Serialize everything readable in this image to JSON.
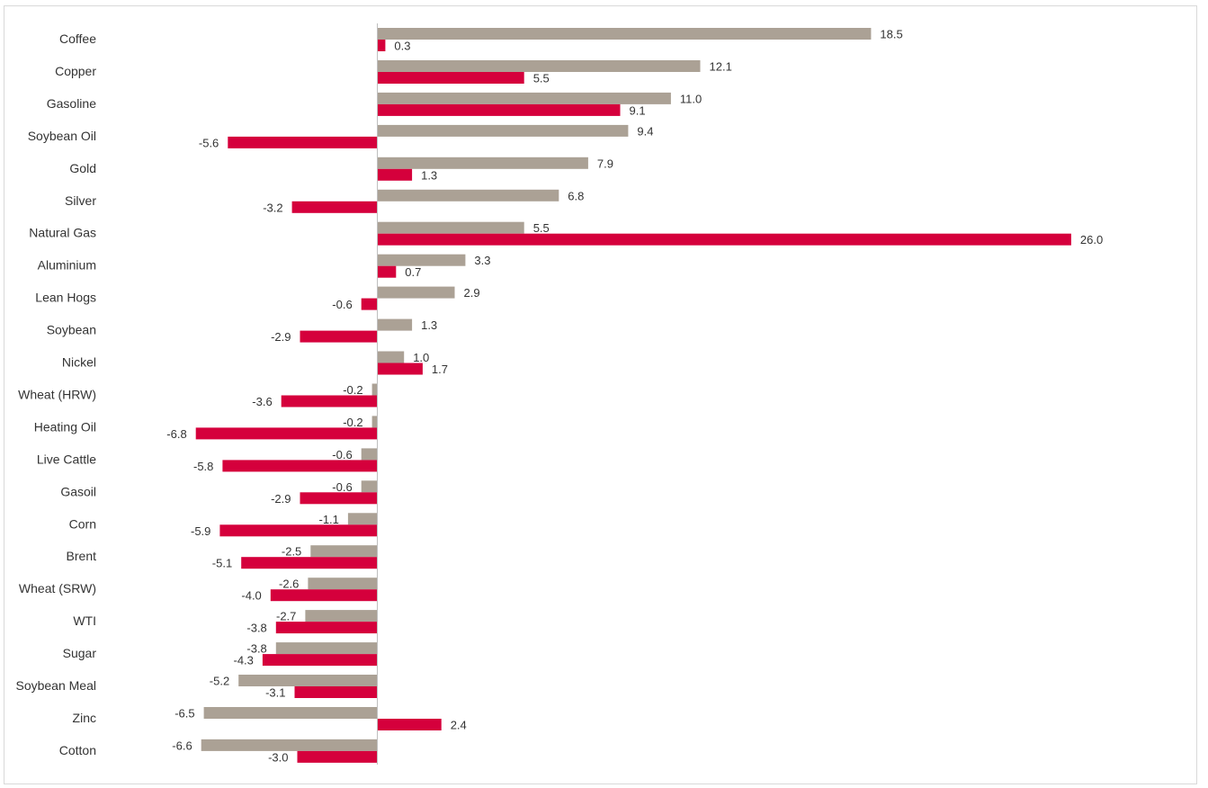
{
  "chart_data": {
    "type": "bar",
    "orientation": "horizontal",
    "title": "",
    "xlabel": "",
    "ylabel": "",
    "grid": false,
    "legend": "none",
    "categories": [
      "Coffee",
      "Copper",
      "Gasoline",
      "Soybean Oil",
      "Gold",
      "Silver",
      "Natural Gas",
      "Aluminium",
      "Lean Hogs",
      "Soybean",
      "Nickel",
      "Wheat (HRW)",
      "Heating Oil",
      "Live Cattle",
      "Gasoil",
      "Corn",
      "Brent",
      "Wheat (SRW)",
      "WTI",
      "Sugar",
      "Soybean Meal",
      "Zinc",
      "Cotton"
    ],
    "series": [
      {
        "color": "#aba195",
        "values": [
          18.5,
          12.1,
          11.0,
          9.4,
          7.9,
          6.8,
          5.5,
          3.3,
          2.9,
          1.3,
          1.0,
          -0.2,
          -0.2,
          -0.6,
          -0.6,
          -1.1,
          -2.5,
          -2.6,
          -2.7,
          -3.8,
          -5.2,
          -6.5,
          -6.6
        ],
        "labels": [
          "18.5",
          "12.1",
          "11.0",
          "9.4",
          "7.9",
          "6.8",
          "5.5",
          "3.3",
          "2.9",
          "1.3",
          "1.0",
          "-0.2",
          "-0.2",
          "-0.6",
          "-0.6",
          "-1.1",
          "-2.5",
          "-2.6",
          "-2.7",
          "-3.8",
          "-5.2",
          "-6.5",
          "-6.6"
        ]
      },
      {
        "color": "#d5003c",
        "values": [
          0.3,
          5.5,
          9.1,
          -5.6,
          1.3,
          -3.2,
          26.0,
          0.7,
          -0.6,
          -2.9,
          1.7,
          -3.6,
          -6.8,
          -5.8,
          -2.9,
          -5.9,
          -5.1,
          -4.0,
          -3.8,
          -4.3,
          -3.1,
          2.4,
          -3.0
        ],
        "labels": [
          "0.3",
          "5.5",
          "9.1",
          "-5.6",
          "1.3",
          "-3.2",
          "26.0",
          "0.7",
          "-0.6",
          "-2.9",
          "1.7",
          "-3.6",
          "-6.8",
          "-5.8",
          "-2.9",
          "-5.9",
          "-5.1",
          "-4.0",
          "-3.8",
          "-4.3",
          "-3.1",
          "2.4",
          "-3.0"
        ]
      }
    ]
  }
}
